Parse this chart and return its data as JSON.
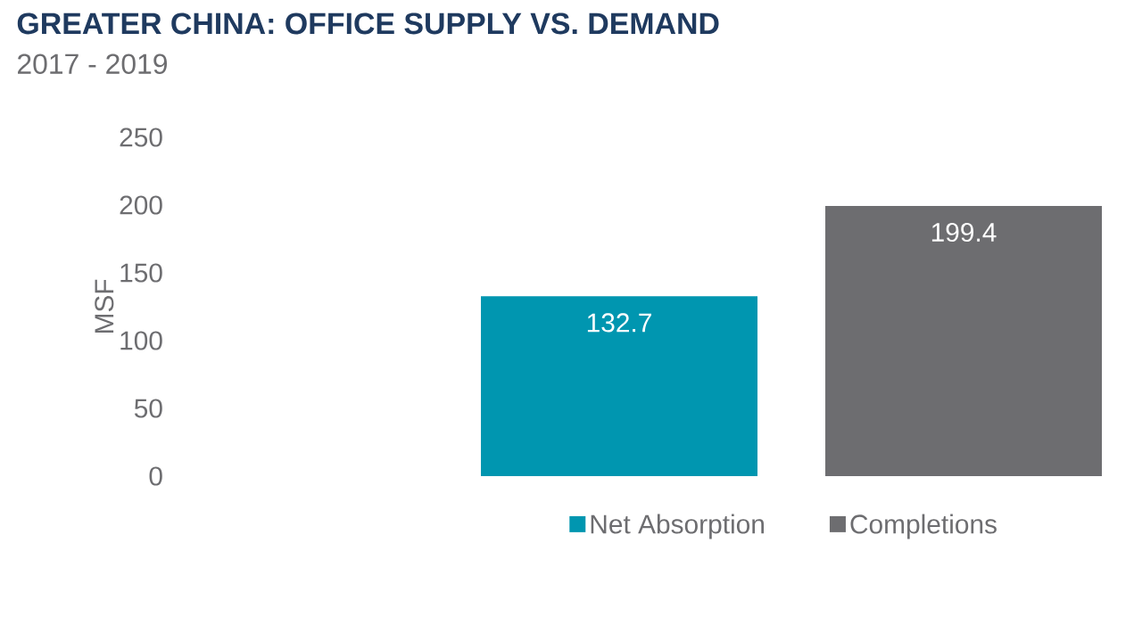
{
  "chart_data": {
    "type": "bar",
    "title": "GREATER CHINA: OFFICE SUPPLY VS. DEMAND",
    "subtitle": "2017 - 2019",
    "ylabel": "MSF",
    "categories": [
      null
    ],
    "series": [
      {
        "name": "Net Absorption",
        "color": "#0096b0",
        "values": [
          132.7
        ]
      },
      {
        "name": "Completions",
        "color": "#6d6d70",
        "values": [
          199.4
        ]
      }
    ],
    "ylim": [
      0,
      250
    ],
    "yticks": [
      0,
      50,
      100,
      150,
      200,
      250
    ],
    "tick_labels": "y",
    "data_labels": true,
    "grid": false,
    "legend": "bottom"
  }
}
